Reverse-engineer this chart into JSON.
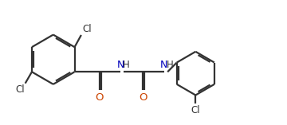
{
  "bg_color": "#ffffff",
  "line_color": "#333333",
  "cl_color": "#333333",
  "o_color": "#cc4400",
  "n_color": "#0000bb",
  "h_color": "#333333",
  "line_width": 1.6,
  "dbo": 0.055,
  "figsize": [
    3.6,
    1.57
  ],
  "dpi": 100,
  "xlim": [
    0,
    9.5
  ],
  "ylim": [
    0,
    4.1
  ]
}
